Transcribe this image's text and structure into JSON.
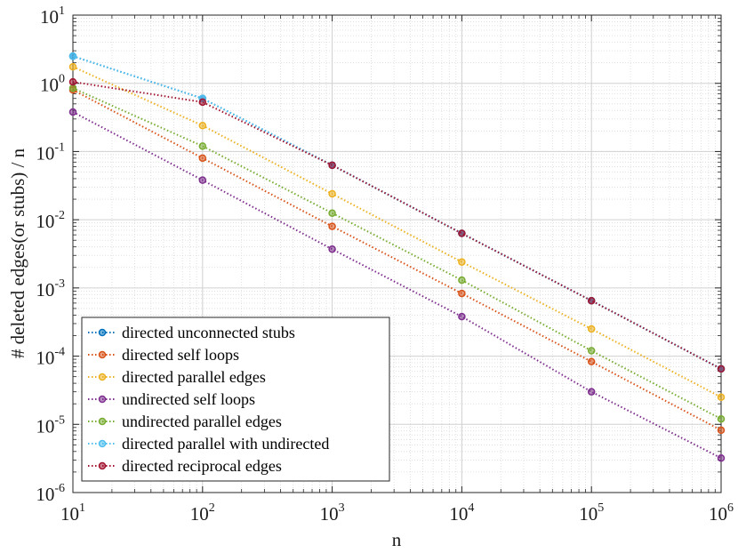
{
  "chart_data": {
    "type": "line",
    "title": "",
    "xlabel": "n",
    "ylabel": "# deleted edges(or stubs) / n",
    "xscale": "log",
    "yscale": "log",
    "xlim": [
      10,
      1000000
    ],
    "ylim": [
      1e-06,
      10
    ],
    "grid": true,
    "legend_position": "bottom-left",
    "x": [
      10,
      100,
      1000,
      10000,
      100000,
      1000000
    ],
    "x_ticks": [
      {
        "value": 10,
        "base": "10",
        "exp": "1"
      },
      {
        "value": 100,
        "base": "10",
        "exp": "2"
      },
      {
        "value": 1000,
        "base": "10",
        "exp": "3"
      },
      {
        "value": 10000,
        "base": "10",
        "exp": "4"
      },
      {
        "value": 100000,
        "base": "10",
        "exp": "5"
      },
      {
        "value": 1000000,
        "base": "10",
        "exp": "6"
      }
    ],
    "y_ticks": [
      {
        "value": 10,
        "base": "10",
        "exp": "1"
      },
      {
        "value": 1,
        "base": "10",
        "exp": "0"
      },
      {
        "value": 0.1,
        "base": "10",
        "exp": "-1"
      },
      {
        "value": 0.01,
        "base": "10",
        "exp": "-2"
      },
      {
        "value": 0.001,
        "base": "10",
        "exp": "-3"
      },
      {
        "value": 0.0001,
        "base": "10",
        "exp": "-4"
      },
      {
        "value": 1e-05,
        "base": "10",
        "exp": "-5"
      },
      {
        "value": 1e-06,
        "base": "10",
        "exp": "-6"
      }
    ],
    "series": [
      {
        "name": "directed unconnected stubs",
        "color": "#0072BD",
        "values": [
          2.5,
          0.6,
          0.063,
          0.0063,
          0.00065,
          6.5e-05
        ]
      },
      {
        "name": "directed self loops",
        "color": "#D95319",
        "values": [
          0.8,
          0.08,
          0.008,
          0.00083,
          8.3e-05,
          8.2e-06
        ]
      },
      {
        "name": "directed parallel edges",
        "color": "#EDB120",
        "values": [
          1.75,
          0.24,
          0.024,
          0.0024,
          0.00025,
          2.5e-05
        ]
      },
      {
        "name": "undirected self loops",
        "color": "#7E2F8E",
        "values": [
          0.38,
          0.038,
          0.0037,
          0.00038,
          3e-05,
          3.2e-06
        ]
      },
      {
        "name": "undirected parallel edges",
        "color": "#77AC30",
        "values": [
          0.85,
          0.12,
          0.0125,
          0.0013,
          0.00012,
          1.2e-05
        ]
      },
      {
        "name": "directed parallel with undirected",
        "color": "#4DBEEE",
        "values": [
          2.5,
          0.6,
          0.063,
          0.0063,
          0.00065,
          6.5e-05
        ]
      },
      {
        "name": "directed reciprocal edges",
        "color": "#A2142F",
        "values": [
          1.05,
          0.53,
          0.063,
          0.0063,
          0.00065,
          6.5e-05
        ]
      }
    ]
  }
}
